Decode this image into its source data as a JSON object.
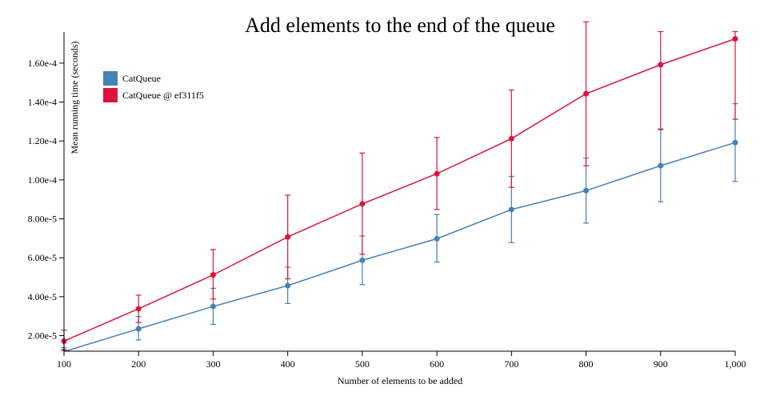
{
  "chart_data": {
    "type": "line",
    "title": "Add elements to the end of the queue",
    "xlabel": "Number of elements to be added",
    "ylabel": "Mean running time (seconds)",
    "xlim": [
      100,
      1000
    ],
    "ylim": [
      1.2e-05,
      0.000176
    ],
    "x": [
      100,
      200,
      300,
      400,
      500,
      600,
      700,
      800,
      900,
      1000
    ],
    "x_tick_labels": [
      "100",
      "200",
      "300",
      "400",
      "500",
      "600",
      "700",
      "800",
      "900",
      "1,000"
    ],
    "y_ticks": [
      2e-05,
      4e-05,
      6e-05,
      8e-05,
      0.0001,
      0.00012,
      0.00014,
      0.00016
    ],
    "y_tick_labels": [
      "2.00e-5",
      "4.00e-5",
      "6.00e-5",
      "8.00e-5",
      "1.00e-4",
      "1.20e-4",
      "1.40e-4",
      "1.60e-4"
    ],
    "legend_position": "top-left",
    "series": [
      {
        "name": "CatQueue",
        "color": "#4682b4",
        "values": [
          1.18e-05,
          2.35e-05,
          3.5e-05,
          4.57e-05,
          5.87e-05,
          6.98e-05,
          8.48e-05,
          9.45e-05,
          0.0001073,
          0.0001192
        ],
        "err_low": [
          1.02e-05,
          1.78e-05,
          2.58e-05,
          3.65e-05,
          4.62e-05,
          5.78e-05,
          6.78e-05,
          7.78e-05,
          8.88e-05,
          9.92e-05
        ],
        "err_high": [
          1.38e-05,
          2.98e-05,
          4.43e-05,
          5.52e-05,
          7.12e-05,
          8.22e-05,
          0.0001018,
          0.0001112,
          0.0001262,
          0.0001392
        ]
      },
      {
        "name": "CatQueue @ ef311f5",
        "color": "#dc143c",
        "values": [
          1.72e-05,
          3.38e-05,
          5.12e-05,
          7.07e-05,
          8.77e-05,
          0.0001032,
          0.0001212,
          0.0001443,
          0.0001592,
          0.0001725
        ],
        "err_low": [
          1.28e-05,
          2.68e-05,
          3.88e-05,
          4.92e-05,
          6.18e-05,
          8.48e-05,
          9.62e-05,
          0.0001072,
          0.0001258,
          0.0001312
        ],
        "err_high": [
          2.28e-05,
          4.08e-05,
          6.42e-05,
          9.22e-05,
          0.0001138,
          0.0001218,
          0.0001462,
          0.0001812,
          0.0001762,
          0.0001762
        ]
      }
    ]
  }
}
